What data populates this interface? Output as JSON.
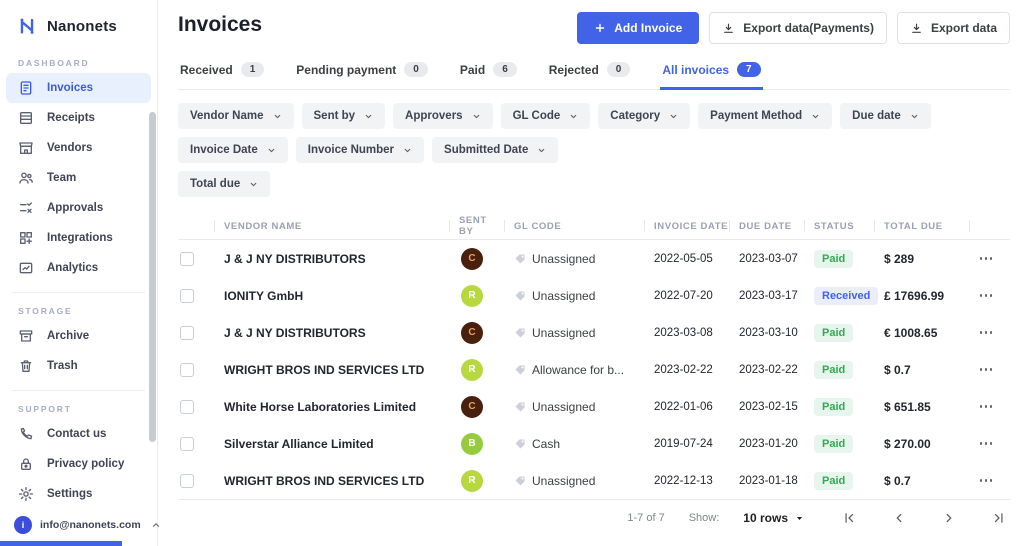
{
  "brand": {
    "name": "Nanonets"
  },
  "sidebar": {
    "sections": [
      {
        "label": "DASHBOARD",
        "items": [
          {
            "label": "Invoices",
            "icon": "invoices-icon",
            "active": true
          },
          {
            "label": "Receipts",
            "icon": "receipts-icon",
            "active": false
          },
          {
            "label": "Vendors",
            "icon": "vendors-icon",
            "active": false
          },
          {
            "label": "Team",
            "icon": "team-icon",
            "active": false
          },
          {
            "label": "Approvals",
            "icon": "approvals-icon",
            "active": false
          },
          {
            "label": "Integrations",
            "icon": "integrations-icon",
            "active": false
          },
          {
            "label": "Analytics",
            "icon": "analytics-icon",
            "active": false
          }
        ]
      },
      {
        "label": "STORAGE",
        "items": [
          {
            "label": "Archive",
            "icon": "archive-icon",
            "active": false
          },
          {
            "label": "Trash",
            "icon": "trash-icon",
            "active": false
          }
        ]
      },
      {
        "label": "SUPPORT",
        "items": [
          {
            "label": "Contact us",
            "icon": "phone-icon",
            "active": false
          },
          {
            "label": "Privacy policy",
            "icon": "lock-icon",
            "active": false
          },
          {
            "label": "Settings",
            "icon": "gear-icon",
            "active": false
          }
        ]
      }
    ],
    "account": {
      "email": "info@nanonets.com",
      "avatar_letter": "i"
    }
  },
  "header": {
    "title": "Invoices",
    "add_invoice_label": "Add Invoice",
    "export_payments_label": "Export data(Payments)",
    "export_data_label": "Export data"
  },
  "tabs": [
    {
      "label": "Received",
      "count": "1",
      "active": false
    },
    {
      "label": "Pending payment",
      "count": "0",
      "active": false
    },
    {
      "label": "Paid",
      "count": "6",
      "active": false
    },
    {
      "label": "Rejected",
      "count": "0",
      "active": false
    },
    {
      "label": "All invoices",
      "count": "7",
      "active": true
    }
  ],
  "filters_row1": [
    "Vendor Name",
    "Sent by",
    "Approvers",
    "GL Code",
    "Category",
    "Payment Method",
    "Due date",
    "Invoice Date",
    "Invoice Number",
    "Submitted Date"
  ],
  "filters_row2": [
    "Total due"
  ],
  "table": {
    "columns": [
      "VENDOR NAME",
      "SENT BY",
      "GL CODE",
      "INVOICE DATE",
      "DUE DATE",
      "STATUS",
      "TOTAL DUE"
    ],
    "rows": [
      {
        "vendor": "J & J NY DISTRIBUTORS",
        "sent_by_initial": "C",
        "avatar_bg": "#47210e",
        "avatar_fg": "#ef9e5f",
        "gl_code": "Unassigned",
        "invoice_date": "2022-05-05",
        "due_date": "2023-03-07",
        "status": "Paid",
        "total_due": "$ 289"
      },
      {
        "vendor": "IONITY GmbH",
        "sent_by_initial": "R",
        "avatar_bg": "#b8d840",
        "avatar_fg": "#ffffff",
        "gl_code": "Unassigned",
        "invoice_date": "2022-07-20",
        "due_date": "2023-03-17",
        "status": "Received",
        "total_due": "£ 17696.99"
      },
      {
        "vendor": "J & J NY DISTRIBUTORS",
        "sent_by_initial": "C",
        "avatar_bg": "#47210e",
        "avatar_fg": "#ef9e5f",
        "gl_code": "Unassigned",
        "invoice_date": "2023-03-08",
        "due_date": "2023-03-10",
        "status": "Paid",
        "total_due": "€ 1008.65"
      },
      {
        "vendor": "WRIGHT BROS IND SERVICES LTD",
        "sent_by_initial": "R",
        "avatar_bg": "#b8d840",
        "avatar_fg": "#ffffff",
        "gl_code": "Allowance for b...",
        "invoice_date": "2023-02-22",
        "due_date": "2023-02-22",
        "status": "Paid",
        "total_due": "$ 0.7"
      },
      {
        "vendor": "White Horse Laboratories Limited",
        "sent_by_initial": "C",
        "avatar_bg": "#47210e",
        "avatar_fg": "#ef9e5f",
        "gl_code": "Unassigned",
        "invoice_date": "2022-01-06",
        "due_date": "2023-02-15",
        "status": "Paid",
        "total_due": "$ 651.85"
      },
      {
        "vendor": "Silverstar Alliance Limited",
        "sent_by_initial": "B",
        "avatar_bg": "#97cb3f",
        "avatar_fg": "#ffffff",
        "gl_code": "Cash",
        "invoice_date": "2019-07-24",
        "due_date": "2023-01-20",
        "status": "Paid",
        "total_due": "$ 270.00"
      },
      {
        "vendor": "WRIGHT BROS IND SERVICES LTD",
        "sent_by_initial": "R",
        "avatar_bg": "#b8d840",
        "avatar_fg": "#ffffff",
        "gl_code": "Unassigned",
        "invoice_date": "2022-12-13",
        "due_date": "2023-01-18",
        "status": "Paid",
        "total_due": "$ 0.7"
      }
    ]
  },
  "pagination": {
    "range_text": "1-7 of 7",
    "show_label": "Show:",
    "rows_per_page": "10 rows"
  },
  "colors": {
    "accent": "#4262e8",
    "status": {
      "Paid": {
        "bg": "#e7f6ec",
        "fg": "#34a853"
      },
      "Received": {
        "bg": "#e9edfc",
        "fg": "#4262e8"
      }
    }
  }
}
